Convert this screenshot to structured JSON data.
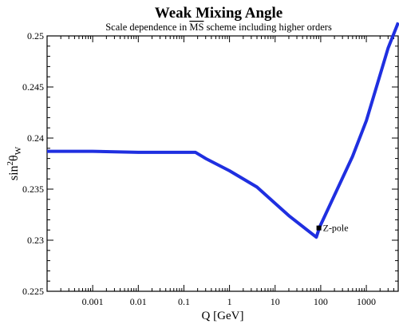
{
  "chart_data": {
    "type": "line",
    "title": "Weak Mixing Angle",
    "subtitle": {
      "before": "Scale dependence in ",
      "overlined": "MS",
      "after": " scheme including higher orders"
    },
    "xlabel": "Q [GeV]",
    "ylabel": {
      "prefix": "sin",
      "power": "2",
      "symbol": "θ",
      "subscript": "W"
    },
    "x_scale": "log",
    "xlim": [
      0.0001,
      5000
    ],
    "ylim": [
      0.225,
      0.25
    ],
    "x_ticks": [
      {
        "value": 0.001,
        "label": "0.001"
      },
      {
        "value": 0.01,
        "label": "0.01"
      },
      {
        "value": 0.1,
        "label": "0.1"
      },
      {
        "value": 1,
        "label": "1"
      },
      {
        "value": 10,
        "label": "10"
      },
      {
        "value": 100,
        "label": "100"
      },
      {
        "value": 1000,
        "label": "1000"
      }
    ],
    "y_ticks": [
      {
        "value": 0.225,
        "label": "0.225"
      },
      {
        "value": 0.23,
        "label": "0.23"
      },
      {
        "value": 0.235,
        "label": "0.235"
      },
      {
        "value": 0.24,
        "label": "0.24"
      },
      {
        "value": 0.245,
        "label": "0.245"
      },
      {
        "value": 0.25,
        "label": "0.25"
      }
    ],
    "grid": false,
    "series": [
      {
        "color": "#1f2fe0",
        "x": [
          0.0001,
          0.001,
          0.01,
          0.1,
          0.18,
          0.3,
          1,
          4,
          20,
          80,
          95,
          500,
          1000,
          3000,
          5000
        ],
        "y": [
          0.2387,
          0.2387,
          0.2386,
          0.2386,
          0.2386,
          0.238,
          0.2368,
          0.2352,
          0.2324,
          0.2303,
          0.2313,
          0.2382,
          0.2417,
          0.2488,
          0.2513
        ]
      }
    ],
    "annotations": [
      {
        "label": "Z-pole",
        "x": 91.19,
        "y": 0.2312
      }
    ]
  }
}
